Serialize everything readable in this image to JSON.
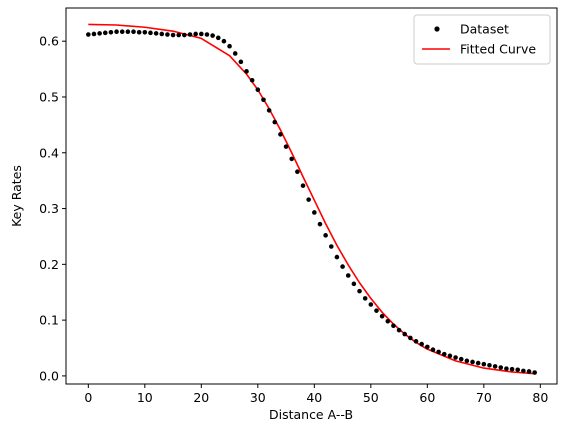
{
  "chart_data": {
    "type": "scatter",
    "title": "",
    "xlabel": "Distance A--B",
    "ylabel": "Key Rates",
    "xlim": [
      -3.95,
      82.95
    ],
    "ylim": [
      -0.0145,
      0.6595
    ],
    "xticks": [
      0,
      10,
      20,
      30,
      40,
      50,
      60,
      70,
      80
    ],
    "yticks": [
      0.0,
      0.1,
      0.2,
      0.3,
      0.4,
      0.5,
      0.6
    ],
    "ytick_labels": [
      "0.0",
      "0.1",
      "0.2",
      "0.3",
      "0.4",
      "0.5",
      "0.6"
    ],
    "grid": false,
    "legend_position": "top-right",
    "series": [
      {
        "name": "Dataset",
        "kind": "scatter",
        "color": "#000000",
        "x": [
          0,
          1,
          2,
          3,
          4,
          5,
          6,
          7,
          8,
          9,
          10,
          11,
          12,
          13,
          14,
          15,
          16,
          17,
          18,
          19,
          20,
          21,
          22,
          23,
          24,
          25,
          26,
          27,
          28,
          29,
          30,
          31,
          32,
          33,
          34,
          35,
          36,
          37,
          38,
          39,
          40,
          41,
          42,
          43,
          44,
          45,
          46,
          47,
          48,
          49,
          50,
          51,
          52,
          53,
          54,
          55,
          56,
          57,
          58,
          59,
          60,
          61,
          62,
          63,
          64,
          65,
          66,
          67,
          68,
          69,
          70,
          71,
          72,
          73,
          74,
          75,
          76,
          77,
          78,
          79
        ],
        "y": [
          0.612,
          0.613,
          0.614,
          0.615,
          0.616,
          0.617,
          0.617,
          0.617,
          0.617,
          0.616,
          0.616,
          0.615,
          0.614,
          0.613,
          0.612,
          0.611,
          0.611,
          0.611,
          0.612,
          0.613,
          0.613,
          0.612,
          0.61,
          0.606,
          0.6,
          0.591,
          0.578,
          0.563,
          0.546,
          0.53,
          0.513,
          0.495,
          0.476,
          0.455,
          0.433,
          0.411,
          0.389,
          0.366,
          0.341,
          0.316,
          0.293,
          0.272,
          0.252,
          0.232,
          0.213,
          0.196,
          0.18,
          0.165,
          0.152,
          0.139,
          0.128,
          0.117,
          0.107,
          0.098,
          0.09,
          0.082,
          0.075,
          0.068,
          0.062,
          0.057,
          0.052,
          0.047,
          0.043,
          0.039,
          0.036,
          0.033,
          0.03,
          0.027,
          0.025,
          0.023,
          0.021,
          0.019,
          0.017,
          0.015,
          0.013,
          0.012,
          0.011,
          0.009,
          0.008,
          0.006
        ]
      },
      {
        "name": "Fitted Curve",
        "kind": "line",
        "color": "#ff0000",
        "x": [
          0,
          5,
          10,
          15,
          20,
          25,
          28,
          30,
          32,
          34,
          36,
          38,
          40,
          42,
          44,
          46,
          48,
          50,
          52,
          54,
          56,
          58,
          60,
          65,
          70,
          75,
          79
        ],
        "y": [
          0.63,
          0.629,
          0.625,
          0.618,
          0.605,
          0.574,
          0.541,
          0.513,
          0.479,
          0.441,
          0.4,
          0.357,
          0.315,
          0.273,
          0.234,
          0.199,
          0.167,
          0.139,
          0.114,
          0.093,
          0.075,
          0.06,
          0.048,
          0.027,
          0.014,
          0.007,
          0.004
        ]
      }
    ]
  }
}
